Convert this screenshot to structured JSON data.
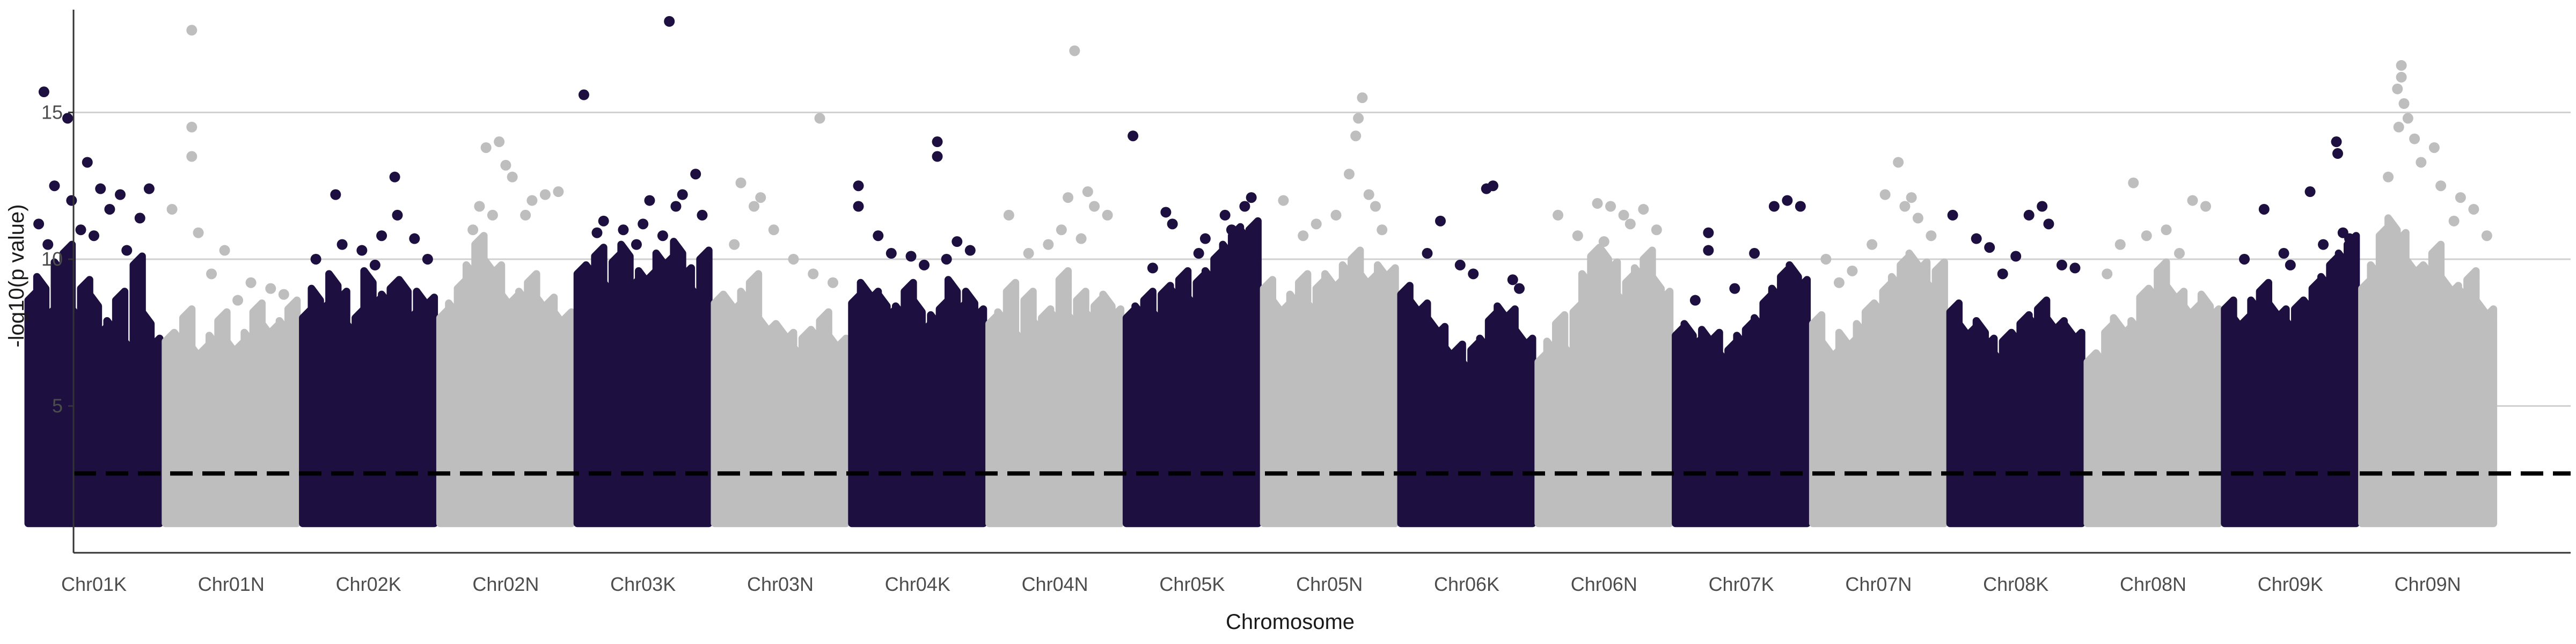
{
  "chart_data": {
    "type": "scatter",
    "title": "",
    "xlabel": "Chromosome",
    "ylabel": "-log10(p value)",
    "ylim": [
      0,
      18.5
    ],
    "y_ticks": [
      5,
      10,
      15
    ],
    "grid": "horizontal major lines",
    "threshold": 2.7,
    "threshold_style": "dashed black line",
    "colors": {
      "dark": "#1d1040",
      "light": "#bebebe",
      "threshold": "#000000"
    },
    "categories": [
      "Chr01K",
      "Chr01N",
      "Chr02K",
      "Chr02N",
      "Chr03K",
      "Chr03N",
      "Chr04K",
      "Chr04N",
      "Chr05K",
      "Chr05N",
      "Chr06K",
      "Chr06N",
      "Chr07K",
      "Chr07N",
      "Chr08K",
      "Chr08N",
      "Chr09K",
      "Chr09N"
    ],
    "series": [
      {
        "category": "Chr01K",
        "color_key": "dark",
        "dense_top": [
          8.6,
          9.4,
          8.0,
          9.9,
          10.2,
          8.3,
          9.0,
          8.8,
          7.4,
          7.9,
          8.6,
          7.2,
          9.8,
          8.2,
          7.0
        ],
        "points": [
          [
            0.12,
            15.7
          ],
          [
            0.3,
            14.8
          ],
          [
            0.2,
            12.5
          ],
          [
            0.45,
            13.3
          ],
          [
            0.55,
            12.4
          ],
          [
            0.7,
            12.2
          ],
          [
            0.85,
            11.4
          ],
          [
            0.08,
            11.2
          ],
          [
            0.62,
            11.7
          ],
          [
            0.33,
            12.0
          ],
          [
            0.92,
            12.4
          ],
          [
            0.5,
            10.8
          ],
          [
            0.15,
            10.5
          ],
          [
            0.75,
            10.3
          ],
          [
            0.4,
            11.0
          ]
        ]
      },
      {
        "category": "Chr01N",
        "color_key": "light",
        "dense_top": [
          7.2,
          7.5,
          8.0,
          7.0,
          6.8,
          7.4,
          7.9,
          7.2,
          6.9,
          7.5,
          8.2,
          7.8,
          7.5,
          7.9,
          8.3
        ],
        "points": [
          [
            0.2,
            17.8
          ],
          [
            0.2,
            14.5
          ],
          [
            0.2,
            13.5
          ],
          [
            0.05,
            11.7
          ],
          [
            0.25,
            10.9
          ],
          [
            0.45,
            10.3
          ],
          [
            0.65,
            9.2
          ],
          [
            0.8,
            9.0
          ],
          [
            0.55,
            8.6
          ],
          [
            0.9,
            8.8
          ],
          [
            0.35,
            9.5
          ]
        ]
      },
      {
        "category": "Chr02K",
        "color_key": "dark",
        "dense_top": [
          8.0,
          9.0,
          8.2,
          9.5,
          8.6,
          7.8,
          8.0,
          9.6,
          8.4,
          8.8,
          9.0,
          9.3,
          7.9,
          8.9,
          8.4
        ],
        "points": [
          [
            0.25,
            12.2
          ],
          [
            0.7,
            12.8
          ],
          [
            0.72,
            11.5
          ],
          [
            0.85,
            10.7
          ],
          [
            0.1,
            10.0
          ],
          [
            0.45,
            10.3
          ],
          [
            0.55,
            9.8
          ],
          [
            0.3,
            10.5
          ],
          [
            0.95,
            10.0
          ],
          [
            0.6,
            10.8
          ]
        ]
      },
      {
        "category": "Chr02N",
        "color_key": "light",
        "dense_top": [
          8.0,
          8.5,
          9.0,
          9.8,
          10.5,
          10.0,
          9.5,
          8.8,
          8.5,
          8.9,
          9.2,
          8.7,
          8.4,
          8.2,
          7.9
        ],
        "points": [
          [
            0.35,
            13.8
          ],
          [
            0.45,
            14.0
          ],
          [
            0.5,
            13.2
          ],
          [
            0.55,
            12.8
          ],
          [
            0.3,
            11.8
          ],
          [
            0.65,
            11.5
          ],
          [
            0.7,
            12.0
          ],
          [
            0.8,
            12.2
          ],
          [
            0.9,
            12.3
          ],
          [
            0.25,
            11.0
          ],
          [
            0.4,
            11.5
          ]
        ]
      },
      {
        "category": "Chr03K",
        "color_key": "dark",
        "dense_top": [
          9.5,
          9.8,
          10.1,
          9.2,
          9.9,
          10.5,
          9.0,
          9.6,
          9.3,
          10.2,
          9.8,
          10.6,
          9.4,
          9.0,
          10.0
        ],
        "points": [
          [
            0.7,
            18.1
          ],
          [
            0.05,
            15.6
          ],
          [
            0.9,
            12.9
          ],
          [
            0.2,
            11.3
          ],
          [
            0.35,
            11.0
          ],
          [
            0.5,
            11.2
          ],
          [
            0.55,
            12.0
          ],
          [
            0.65,
            10.8
          ],
          [
            0.8,
            12.2
          ],
          [
            0.95,
            11.5
          ],
          [
            0.15,
            10.9
          ],
          [
            0.45,
            10.5
          ],
          [
            0.75,
            11.8
          ]
        ]
      },
      {
        "category": "Chr03N",
        "color_key": "light",
        "dense_top": [
          8.5,
          8.8,
          8.2,
          8.9,
          9.2,
          8.0,
          7.5,
          7.8,
          7.2,
          7.0,
          7.3,
          7.6,
          7.9,
          7.4,
          7.0
        ],
        "points": [
          [
            0.8,
            14.8
          ],
          [
            0.2,
            12.6
          ],
          [
            0.35,
            12.1
          ],
          [
            0.3,
            11.8
          ],
          [
            0.45,
            11.0
          ],
          [
            0.15,
            10.5
          ],
          [
            0.6,
            10.0
          ],
          [
            0.75,
            9.5
          ],
          [
            0.9,
            9.2
          ]
        ]
      },
      {
        "category": "Chr04K",
        "color_key": "dark",
        "dense_top": [
          8.5,
          9.2,
          8.6,
          8.8,
          8.0,
          8.4,
          8.9,
          8.6,
          7.5,
          8.1,
          8.3,
          9.3,
          8.2,
          8.9,
          8.0
        ],
        "points": [
          [
            0.05,
            12.5
          ],
          [
            0.05,
            11.8
          ],
          [
            0.2,
            10.8
          ],
          [
            0.65,
            14.0
          ],
          [
            0.65,
            13.5
          ],
          [
            0.8,
            10.6
          ],
          [
            0.9,
            10.3
          ],
          [
            0.45,
            10.1
          ],
          [
            0.3,
            10.2
          ],
          [
            0.55,
            9.8
          ],
          [
            0.72,
            10.0
          ]
        ]
      },
      {
        "category": "Chr04N",
        "color_key": "light",
        "dense_top": [
          7.8,
          8.2,
          8.9,
          7.5,
          8.6,
          7.9,
          8.0,
          8.2,
          9.3,
          8.1,
          8.6,
          8.2,
          8.4,
          8.8,
          8.0
        ],
        "points": [
          [
            0.65,
            17.1
          ],
          [
            0.15,
            11.5
          ],
          [
            0.6,
            12.1
          ],
          [
            0.75,
            12.3
          ],
          [
            0.55,
            11.0
          ],
          [
            0.8,
            11.8
          ],
          [
            0.9,
            11.5
          ],
          [
            0.3,
            10.2
          ],
          [
            0.45,
            10.5
          ],
          [
            0.7,
            10.7
          ]
        ]
      },
      {
        "category": "Chr05K",
        "color_key": "dark",
        "dense_top": [
          8.0,
          8.4,
          8.6,
          8.2,
          8.8,
          9.0,
          9.3,
          8.7,
          9.2,
          9.6,
          10.0,
          10.5,
          10.8,
          11.0,
          11.0
        ],
        "points": [
          [
            0.05,
            14.2
          ],
          [
            0.3,
            11.6
          ],
          [
            0.35,
            11.2
          ],
          [
            0.75,
            11.5
          ],
          [
            0.8,
            11.0
          ],
          [
            0.9,
            11.8
          ],
          [
            0.95,
            12.1
          ],
          [
            0.6,
            10.7
          ],
          [
            0.55,
            10.2
          ],
          [
            0.2,
            9.7
          ]
        ]
      },
      {
        "category": "Chr05N",
        "color_key": "light",
        "dense_top": [
          9.0,
          8.6,
          8.2,
          8.8,
          9.2,
          8.5,
          9.0,
          9.5,
          9.0,
          9.8,
          10.0,
          9.5,
          9.2,
          9.8,
          9.4
        ],
        "points": [
          [
            0.75,
            15.5
          ],
          [
            0.72,
            14.8
          ],
          [
            0.7,
            14.2
          ],
          [
            0.65,
            12.9
          ],
          [
            0.8,
            12.2
          ],
          [
            0.85,
            11.8
          ],
          [
            0.15,
            12.0
          ],
          [
            0.4,
            11.2
          ],
          [
            0.55,
            11.5
          ],
          [
            0.9,
            11.0
          ],
          [
            0.3,
            10.8
          ]
        ]
      },
      {
        "category": "Chr06K",
        "color_key": "dark",
        "dense_top": [
          8.8,
          8.6,
          8.2,
          8.0,
          7.4,
          7.0,
          6.8,
          6.5,
          6.9,
          7.3,
          7.9,
          8.4,
          8.0,
          7.6,
          7.0
        ],
        "points": [
          [
            0.3,
            11.3
          ],
          [
            0.65,
            12.4
          ],
          [
            0.7,
            12.5
          ],
          [
            0.2,
            10.2
          ],
          [
            0.45,
            9.8
          ],
          [
            0.55,
            9.5
          ],
          [
            0.85,
            9.3
          ],
          [
            0.9,
            9.0
          ]
        ]
      },
      {
        "category": "Chr06N",
        "color_key": "light",
        "dense_top": [
          6.5,
          7.2,
          7.8,
          7.0,
          8.2,
          9.5,
          10.1,
          10.4,
          9.6,
          8.8,
          9.2,
          9.7,
          10.0,
          9.4,
          8.6
        ],
        "points": [
          [
            0.15,
            11.5
          ],
          [
            0.45,
            11.9
          ],
          [
            0.55,
            11.8
          ],
          [
            0.65,
            11.5
          ],
          [
            0.8,
            11.7
          ],
          [
            0.9,
            11.0
          ],
          [
            0.3,
            10.8
          ],
          [
            0.7,
            11.2
          ],
          [
            0.5,
            10.6
          ]
        ]
      },
      {
        "category": "Chr07K",
        "color_key": "dark",
        "dense_top": [
          7.4,
          7.8,
          7.0,
          7.6,
          7.2,
          6.8,
          6.9,
          7.4,
          7.6,
          8.0,
          8.5,
          9.0,
          9.4,
          9.8,
          9.0
        ],
        "points": [
          [
            0.25,
            10.9
          ],
          [
            0.25,
            10.3
          ],
          [
            0.75,
            11.8
          ],
          [
            0.85,
            12.0
          ],
          [
            0.95,
            11.8
          ],
          [
            0.6,
            10.2
          ],
          [
            0.45,
            9.0
          ],
          [
            0.15,
            8.6
          ]
        ]
      },
      {
        "category": "Chr07N",
        "color_key": "light",
        "dense_top": [
          7.8,
          7.2,
          6.6,
          7.5,
          7.0,
          7.8,
          8.2,
          8.5,
          8.9,
          9.4,
          9.8,
          10.2,
          9.6,
          9.2,
          9.6
        ],
        "points": [
          [
            0.65,
            13.3
          ],
          [
            0.55,
            12.2
          ],
          [
            0.7,
            11.8
          ],
          [
            0.75,
            12.1
          ],
          [
            0.8,
            11.4
          ],
          [
            0.1,
            10.0
          ],
          [
            0.3,
            9.6
          ],
          [
            0.45,
            10.5
          ],
          [
            0.9,
            10.8
          ],
          [
            0.2,
            9.2
          ]
        ]
      },
      {
        "category": "Chr08K",
        "color_key": "dark",
        "dense_top": [
          8.2,
          7.8,
          7.4,
          7.9,
          7.0,
          6.8,
          7.2,
          7.5,
          7.8,
          8.0,
          8.3,
          8.0,
          7.6,
          7.8,
          7.2
        ],
        "points": [
          [
            0.02,
            11.5
          ],
          [
            0.2,
            10.7
          ],
          [
            0.3,
            10.4
          ],
          [
            0.5,
            10.1
          ],
          [
            0.6,
            11.5
          ],
          [
            0.7,
            11.8
          ],
          [
            0.75,
            11.2
          ],
          [
            0.85,
            9.8
          ],
          [
            0.95,
            9.7
          ],
          [
            0.4,
            9.5
          ]
        ]
      },
      {
        "category": "Chr08N",
        "color_key": "light",
        "dense_top": [
          6.5,
          6.8,
          7.5,
          8.0,
          7.4,
          7.9,
          8.7,
          9.0,
          9.6,
          9.1,
          8.6,
          8.4,
          8.2,
          8.8,
          8.0
        ],
        "points": [
          [
            0.35,
            12.6
          ],
          [
            0.8,
            12.0
          ],
          [
            0.9,
            11.8
          ],
          [
            0.6,
            11.0
          ],
          [
            0.25,
            10.5
          ],
          [
            0.45,
            10.8
          ],
          [
            0.7,
            10.2
          ],
          [
            0.15,
            9.5
          ]
        ]
      },
      {
        "category": "Chr09K",
        "color_key": "dark",
        "dense_top": [
          8.3,
          8.0,
          7.8,
          8.6,
          8.9,
          8.5,
          8.0,
          7.9,
          8.3,
          8.6,
          9.0,
          9.4,
          9.8,
          10.2,
          10.5
        ],
        "points": [
          [
            0.85,
            14.0
          ],
          [
            0.86,
            13.6
          ],
          [
            0.65,
            12.3
          ],
          [
            0.3,
            11.7
          ],
          [
            0.9,
            10.9
          ],
          [
            0.95,
            10.7
          ],
          [
            0.15,
            10.0
          ],
          [
            0.5,
            9.8
          ],
          [
            0.75,
            10.5
          ],
          [
            0.45,
            10.2
          ]
        ]
      },
      {
        "category": "Chr09N",
        "color_key": "light",
        "dense_top": [
          9.0,
          9.8,
          10.8,
          11.4,
          10.6,
          10.0,
          9.5,
          9.8,
          10.2,
          9.4,
          8.8,
          9.0,
          9.3,
          8.6,
          8.0
        ],
        "points": [
          [
            0.3,
            16.6
          ],
          [
            0.3,
            16.2
          ],
          [
            0.27,
            15.8
          ],
          [
            0.32,
            15.3
          ],
          [
            0.35,
            14.8
          ],
          [
            0.28,
            14.5
          ],
          [
            0.4,
            14.1
          ],
          [
            0.55,
            13.8
          ],
          [
            0.45,
            13.3
          ],
          [
            0.2,
            12.8
          ],
          [
            0.6,
            12.5
          ],
          [
            0.75,
            12.1
          ],
          [
            0.85,
            11.7
          ],
          [
            0.7,
            11.3
          ],
          [
            0.95,
            10.8
          ]
        ]
      }
    ]
  }
}
